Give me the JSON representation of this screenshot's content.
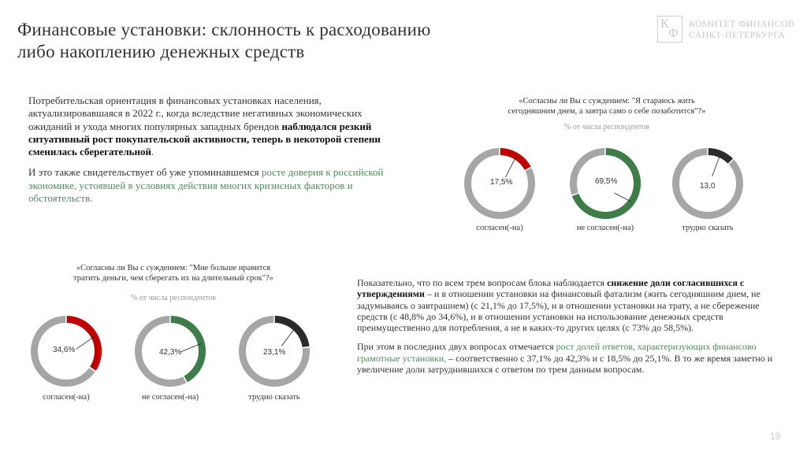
{
  "header": {
    "title_line1": "Финансовые установки: склонность к расходованию",
    "title_line2": "либо накоплению денежных средств"
  },
  "logo": {
    "mark_letter1": "К",
    "mark_letter2": "Ф",
    "line1": "КОМИТЕТ ФИНАНСОВ",
    "line2": "САНКТ-ПЕТЕРБУРГА"
  },
  "intro": {
    "p1_plain": "Потребительская ориентация в финансовых установках населения, актуализировавшаяся в 2022 г., когда вследствие негативных экономических ожиданий и ухода многих популярных западных брендов ",
    "p1_bold": "наблюдался резкий ситуативный рост покупательской активности, теперь в некоторой степени сменилась сберегательной",
    "p1_end": ".",
    "p2_plain": "И это также свидетельствует об уже упоминавшемся ",
    "p2_green": "росте доверия к российской экономике, устоявшей в условиях действия многих кризисных факторов и обстоятельств."
  },
  "colors": {
    "agree": "#c00000",
    "disagree": "#3e7d4a",
    "hard": "#2b2b2b",
    "rest": "#a6a6a6",
    "accent_text_green": "#4e8a5b"
  },
  "chart_data": [
    {
      "type": "pie",
      "variant": "donut-set",
      "title": "«Согласны ли Вы с суждением: \"Я стараюсь жить сегодняшним днем, а завтра само о себе позаботится\"?»",
      "subtitle": "% от числа респондентов",
      "title_line1": "«Согласны ли Вы с суждением: \"Я стараюсь жить",
      "title_line2": "сегодняшним днем, а завтра само о себе позаботится\"?»",
      "categories": [
        "согласен(-на)",
        "не согласен(-на)",
        "трудно сказать"
      ],
      "values": [
        17.5,
        69.5,
        13.0
      ],
      "labels": [
        "17,5%",
        "69,5%",
        "13,0"
      ]
    },
    {
      "type": "pie",
      "variant": "donut-set",
      "title": "«Согласны ли Вы с суждением: \"Мне больше нравится тратить деньги, чем сберегать их на длительный срок\"?»",
      "subtitle": "% от числа респондентов",
      "title_line1": "«Согласны ли Вы с суждением: \"Мне больше нравится",
      "title_line2": "тратить деньги, чем сберегать их на длительный срок\"?»",
      "categories": [
        "согласен(-на)",
        "не согласен(-на)",
        "трудно сказать"
      ],
      "values": [
        34.6,
        42.3,
        23.1
      ],
      "labels": [
        "34,6%",
        "42,3%",
        "23,1%"
      ]
    }
  ],
  "summary": {
    "p1_plain": "Показательно, что по всем трем вопросам блока наблюдается ",
    "p1_bold": "снижение доли согласившихся с утверждениями",
    "p1_rest": " – и в отношении установки на финансовый фатализм (жить сегодняшним днем, не задумываясь о завтрашнем) (с 21,1% до 17,5%), и в отношении установки на трату, а не сбережение средств (с 48,8% до 34,6%), и в отношении установки на использование денежных средств преимущественно для потребления, а не в каких-то других целях (с 73% до 58,5%).",
    "p2_plain": "При этом в последних двух вопросах отмечается ",
    "p2_green": "рост долей ответов, характеризующих финансово грамотные установки,",
    "p2_rest": " – соответственно с 37,1% до 42,3% и с 18,5% до 25,1%. В то же время заметно и увеличение доли затруднившихся с ответом по трем данным вопросам."
  },
  "page": {
    "number": "19"
  }
}
